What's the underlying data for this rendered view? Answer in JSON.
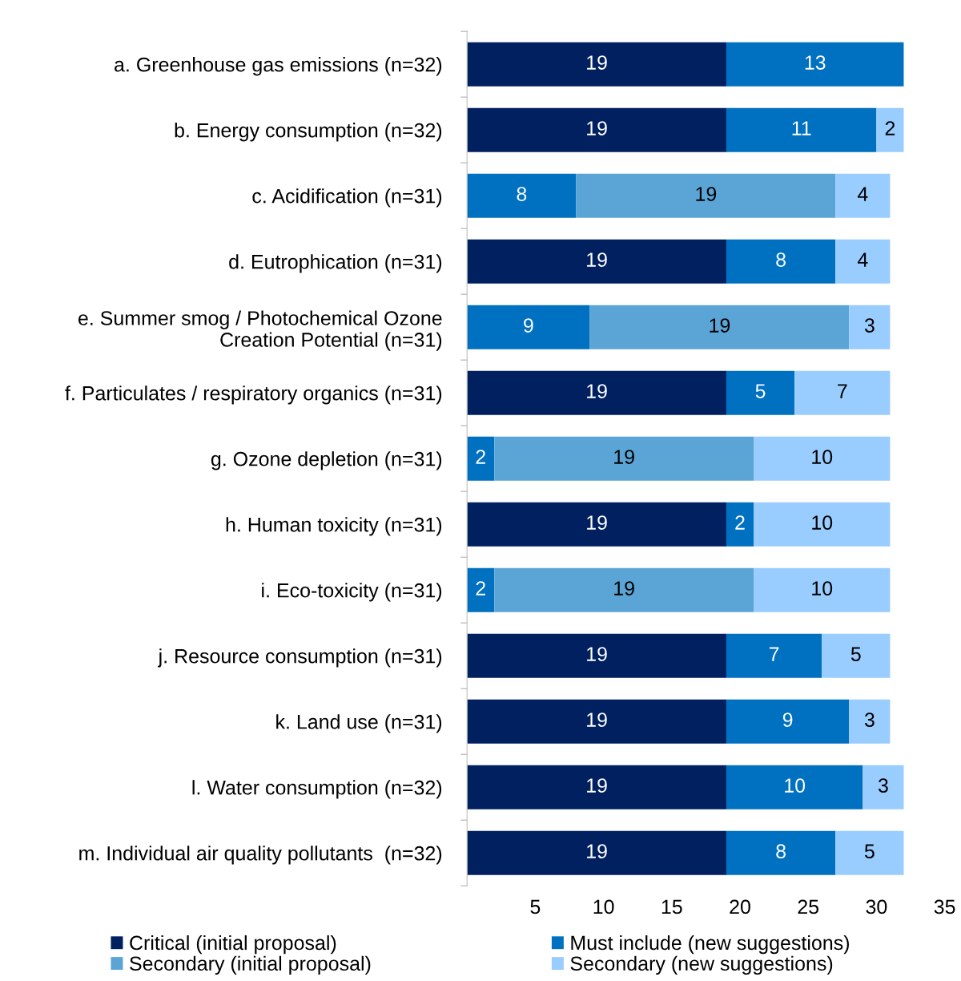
{
  "chart_data": {
    "type": "bar",
    "orientation": "horizontal",
    "stacked": true,
    "data_labels": true,
    "legend": "bottom",
    "grid": false,
    "categories": [
      "a. Greenhouse gas emissions (n=32)",
      "b. Energy consumption (n=32)",
      "c. Acidification (n=31)",
      "d. Eutrophication (n=31)",
      "e. Summer smog / Photochemical Ozone\nCreation Potential (n=31)",
      "f. Particulates / respiratory organics (n=31)",
      "g. Ozone depletion (n=31)",
      "h. Human toxicity (n=31)",
      "i. Eco-toxicity (n=31)",
      "j. Resource consumption (n=31)",
      "k. Land use (n=31)",
      "l. Water consumption (n=32)",
      "m. Individual air quality pollutants  (n=32)"
    ],
    "series": [
      {
        "name": "Critical (initial proposal)",
        "color": "#002060",
        "values": [
          19,
          19,
          null,
          19,
          null,
          19,
          null,
          19,
          null,
          19,
          19,
          19,
          19
        ]
      },
      {
        "name": "Must include (new suggestions)",
        "color": "#0070c0",
        "values": [
          13,
          11,
          8,
          8,
          9,
          5,
          2,
          2,
          2,
          7,
          9,
          10,
          8
        ]
      },
      {
        "name": "Secondary (initial proposal)",
        "color": "#5ba5d6",
        "values": [
          null,
          null,
          19,
          null,
          19,
          null,
          19,
          null,
          19,
          null,
          null,
          null,
          null
        ]
      },
      {
        "name": "Secondary (new suggestions)",
        "color": "#99ccff",
        "values": [
          null,
          2,
          4,
          4,
          3,
          7,
          10,
          10,
          10,
          5,
          3,
          3,
          5
        ]
      }
    ],
    "xlim": [
      0,
      35
    ],
    "xticks": [
      5,
      10,
      15,
      20,
      25,
      30,
      35
    ]
  }
}
